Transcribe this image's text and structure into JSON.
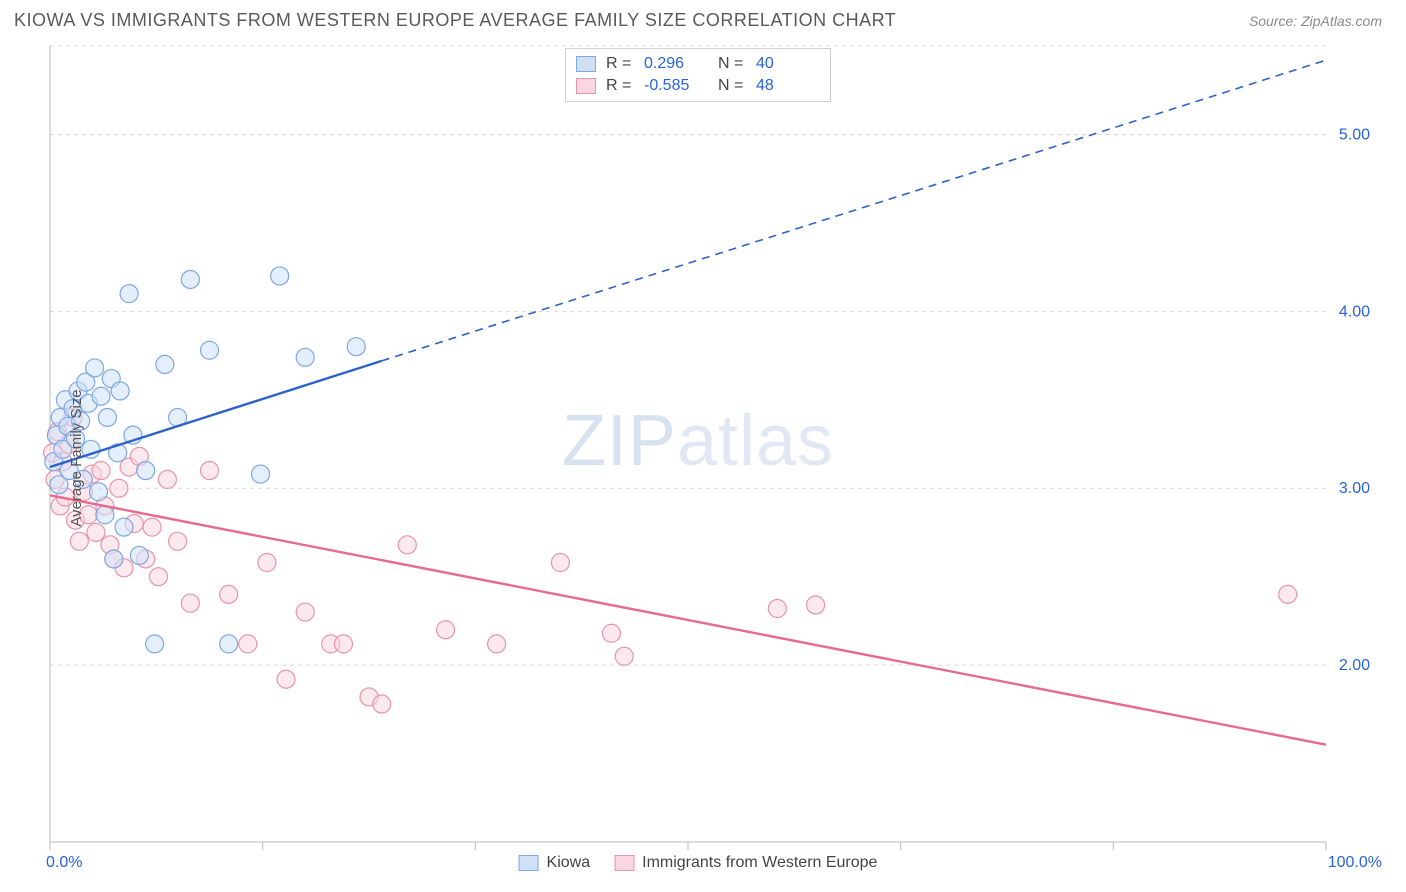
{
  "header": {
    "title": "KIOWA VS IMMIGRANTS FROM WESTERN EUROPE AVERAGE FAMILY SIZE CORRELATION CHART",
    "source": "Source: ZipAtlas.com"
  },
  "watermark": {
    "part1": "ZIP",
    "part2": "atlas"
  },
  "chart": {
    "type": "scatter",
    "ylabel": "Average Family Size",
    "xlim": [
      0,
      100
    ],
    "ylim": [
      1.0,
      5.5
    ],
    "yticks": [
      2.0,
      3.0,
      4.0,
      5.0
    ],
    "ytick_labels": [
      "2.00",
      "3.00",
      "4.00",
      "5.00"
    ],
    "xticks": [
      0,
      16.67,
      33.33,
      50.0,
      66.67,
      83.33,
      100.0
    ],
    "xaxis_labels": {
      "left": "0.0%",
      "right": "100.0%"
    },
    "plot_bg": "#ffffff",
    "grid_color": "#d8d8d8",
    "axis_color": "#b8b8b8",
    "tick_label_color": "#2962d9",
    "marker_radius": 9,
    "marker_stroke_width": 1.2,
    "trend_width_solid": 2.4,
    "trend_width_dash": 1.6,
    "series": [
      {
        "key": "kiowa",
        "label": "Kiowa",
        "fill": "#cfe0f7",
        "stroke": "#7da8e6",
        "fill_opacity": 0.55,
        "r_value": "0.296",
        "n_value": "40",
        "trend": {
          "x1": 0,
          "y1": 3.12,
          "x2_solid": 26,
          "y2_solid": 3.72,
          "x2": 100,
          "y2": 5.42,
          "color": "#2d62c9"
        },
        "points": [
          [
            0.3,
            3.15
          ],
          [
            0.5,
            3.3
          ],
          [
            0.7,
            3.02
          ],
          [
            0.8,
            3.4
          ],
          [
            1.0,
            3.22
          ],
          [
            1.2,
            3.5
          ],
          [
            1.4,
            3.35
          ],
          [
            1.5,
            3.1
          ],
          [
            1.8,
            3.45
          ],
          [
            2.0,
            3.28
          ],
          [
            2.2,
            3.55
          ],
          [
            2.4,
            3.38
          ],
          [
            2.6,
            3.05
          ],
          [
            2.8,
            3.6
          ],
          [
            3.0,
            3.48
          ],
          [
            3.2,
            3.22
          ],
          [
            3.5,
            3.68
          ],
          [
            3.8,
            2.98
          ],
          [
            4.0,
            3.52
          ],
          [
            4.3,
            2.85
          ],
          [
            4.5,
            3.4
          ],
          [
            4.8,
            3.62
          ],
          [
            5.0,
            2.6
          ],
          [
            5.3,
            3.2
          ],
          [
            5.5,
            3.55
          ],
          [
            5.8,
            2.78
          ],
          [
            6.2,
            4.1
          ],
          [
            6.5,
            3.3
          ],
          [
            7.0,
            2.62
          ],
          [
            7.5,
            3.1
          ],
          [
            8.2,
            2.12
          ],
          [
            9.0,
            3.7
          ],
          [
            10.0,
            3.4
          ],
          [
            11.0,
            4.18
          ],
          [
            12.5,
            3.78
          ],
          [
            14.0,
            2.12
          ],
          [
            16.5,
            3.08
          ],
          [
            18.0,
            4.2
          ],
          [
            20.0,
            3.74
          ],
          [
            24.0,
            3.8
          ]
        ]
      },
      {
        "key": "immigrants",
        "label": "Immigrants from Western Europe",
        "fill": "#f9d7e0",
        "stroke": "#e893ac",
        "fill_opacity": 0.55,
        "r_value": "-0.585",
        "n_value": "48",
        "trend": {
          "x1": 0,
          "y1": 2.96,
          "x2_solid": 100,
          "y2_solid": 1.55,
          "x2": 100,
          "y2": 1.55,
          "color": "#e86a8f"
        },
        "points": [
          [
            0.2,
            3.2
          ],
          [
            0.4,
            3.05
          ],
          [
            0.6,
            3.32
          ],
          [
            0.8,
            2.9
          ],
          [
            1.0,
            3.15
          ],
          [
            1.2,
            2.95
          ],
          [
            1.5,
            3.25
          ],
          [
            1.8,
            3.4
          ],
          [
            2.0,
            2.82
          ],
          [
            2.3,
            2.7
          ],
          [
            2.6,
            2.98
          ],
          [
            3.0,
            2.85
          ],
          [
            3.3,
            3.08
          ],
          [
            3.6,
            2.75
          ],
          [
            4.0,
            3.1
          ],
          [
            4.3,
            2.9
          ],
          [
            4.7,
            2.68
          ],
          [
            5.0,
            2.6
          ],
          [
            5.4,
            3.0
          ],
          [
            5.8,
            2.55
          ],
          [
            6.2,
            3.12
          ],
          [
            6.6,
            2.8
          ],
          [
            7.0,
            3.18
          ],
          [
            7.5,
            2.6
          ],
          [
            8.0,
            2.78
          ],
          [
            8.5,
            2.5
          ],
          [
            9.2,
            3.05
          ],
          [
            10.0,
            2.7
          ],
          [
            11.0,
            2.35
          ],
          [
            12.5,
            3.1
          ],
          [
            14.0,
            2.4
          ],
          [
            15.5,
            2.12
          ],
          [
            17.0,
            2.58
          ],
          [
            18.5,
            1.92
          ],
          [
            20.0,
            2.3
          ],
          [
            22.0,
            2.12
          ],
          [
            23.0,
            2.12
          ],
          [
            25.0,
            1.82
          ],
          [
            26.0,
            1.78
          ],
          [
            28.0,
            2.68
          ],
          [
            31.0,
            2.2
          ],
          [
            35.0,
            2.12
          ],
          [
            40.0,
            2.58
          ],
          [
            44.0,
            2.18
          ],
          [
            45.0,
            2.05
          ],
          [
            57.0,
            2.32
          ],
          [
            60.0,
            2.34
          ],
          [
            97.0,
            2.4
          ]
        ]
      }
    ]
  },
  "legend_top": {
    "r_label": "R =",
    "n_label": "N ="
  },
  "legend_bottom_labels": [
    "Kiowa",
    "Immigrants from Western Europe"
  ]
}
